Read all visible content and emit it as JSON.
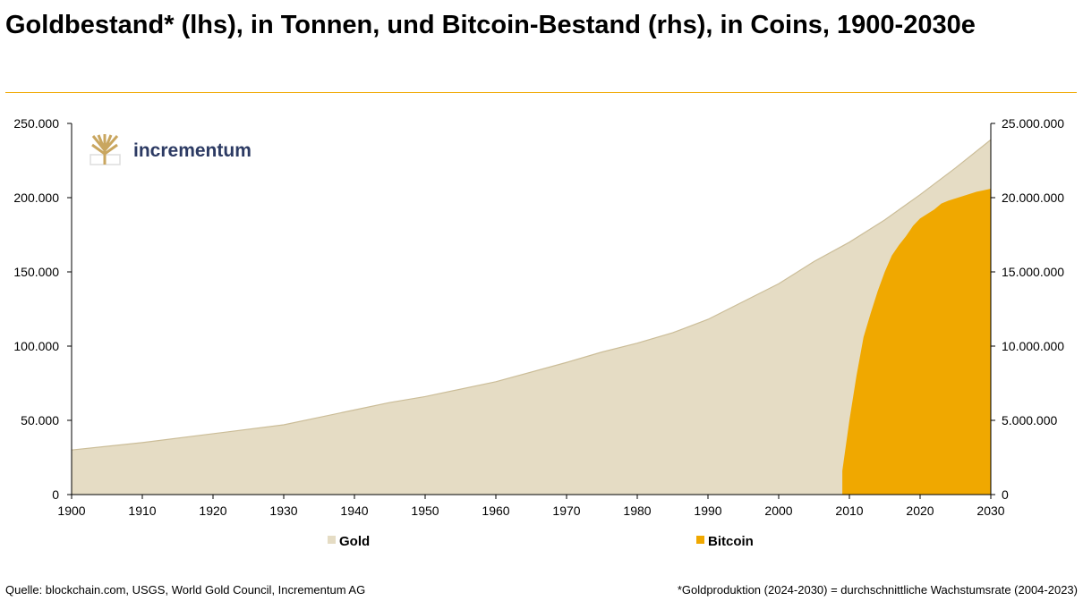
{
  "chart_data": {
    "type": "area",
    "title": "Goldbestand* (lhs), in Tonnen, und Bitcoin-Bestand (rhs), in Coins, 1900-2030e",
    "xlim": [
      1900,
      2030
    ],
    "x_ticks": [
      "1900",
      "1910",
      "1920",
      "1930",
      "1940",
      "1950",
      "1960",
      "1970",
      "1980",
      "1990",
      "2000",
      "2010",
      "2020",
      "2030"
    ],
    "y_left": {
      "lim": [
        0,
        250000
      ],
      "ticks": [
        "0",
        "50.000",
        "100.000",
        "150.000",
        "200.000",
        "250.000"
      ]
    },
    "y_right": {
      "lim": [
        0,
        25000000
      ],
      "ticks": [
        "0",
        "5.000.000",
        "10.000.000",
        "15.000.000",
        "20.000.000",
        "25.000.000"
      ]
    },
    "grid": false,
    "legend_position": "bottom",
    "series": [
      {
        "name": "Gold",
        "axis": "left",
        "color": "#e5dcc4",
        "line_color": "#cbbd98",
        "x": [
          1900,
          1910,
          1920,
          1930,
          1935,
          1940,
          1945,
          1950,
          1960,
          1970,
          1975,
          1980,
          1985,
          1990,
          2000,
          2005,
          2010,
          2015,
          2020,
          2025,
          2030
        ],
        "y": [
          30000,
          35000,
          41000,
          47000,
          52000,
          57000,
          62000,
          66000,
          76000,
          89000,
          96000,
          102000,
          109000,
          118000,
          142000,
          157000,
          170000,
          185000,
          202000,
          220000,
          239000
        ]
      },
      {
        "name": "Bitcoin",
        "axis": "right",
        "color": "#f0a800",
        "x": [
          2009,
          2010,
          2011,
          2012,
          2013,
          2014,
          2015,
          2016,
          2017,
          2018,
          2019,
          2020,
          2021,
          2022,
          2023,
          2024,
          2025,
          2026,
          2027,
          2028,
          2029,
          2030
        ],
        "y": [
          1600000,
          5000000,
          8000000,
          10600000,
          12200000,
          13700000,
          15000000,
          16100000,
          16800000,
          17400000,
          18100000,
          18600000,
          18900000,
          19200000,
          19600000,
          19800000,
          19950000,
          20100000,
          20250000,
          20400000,
          20500000,
          20600000
        ]
      }
    ]
  },
  "logo": {
    "text": "incrementum"
  },
  "footer": {
    "source": "Quelle: blockchain.com, USGS, World Gold Council, Incrementum AG",
    "note": "*Goldproduktion (2024-2030) = durchschnittliche Wachstumsrate (2004-2023)"
  }
}
